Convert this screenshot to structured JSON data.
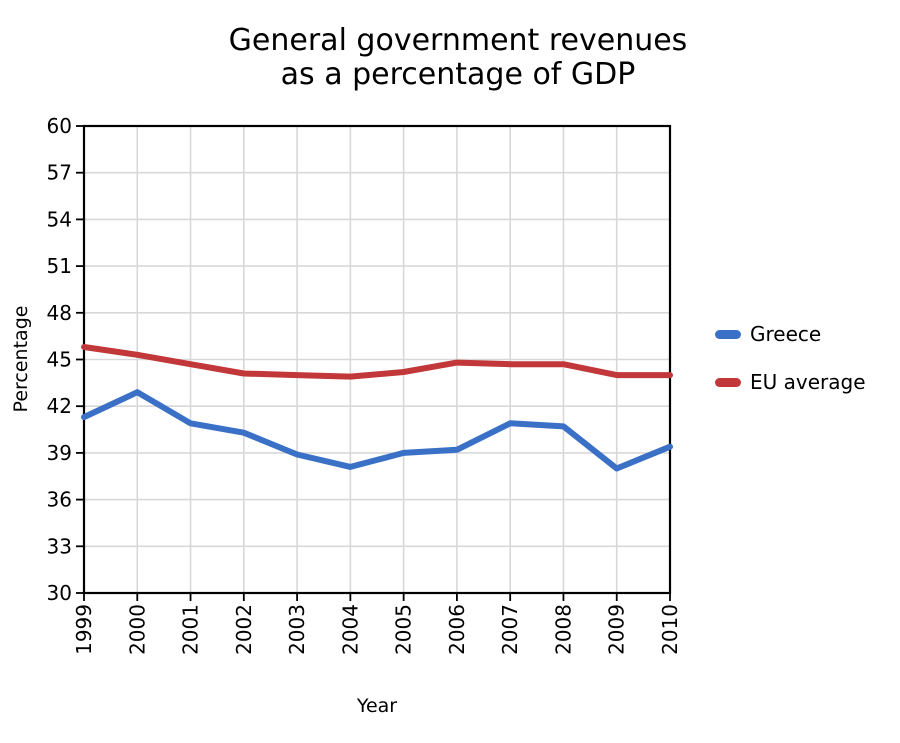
{
  "title": {
    "line1": "General government revenues",
    "line2": "as a percentage of GDP"
  },
  "axes": {
    "x_label": "Year",
    "y_label": "Percentage"
  },
  "chart_data": {
    "type": "line",
    "title": "General government revenues as a percentage of GDP",
    "xlabel": "Year",
    "ylabel": "Percentage",
    "categories": [
      "1999",
      "2000",
      "2001",
      "2002",
      "2003",
      "2004",
      "2005",
      "2006",
      "2007",
      "2008",
      "2009",
      "2010"
    ],
    "ylim": [
      30,
      60
    ],
    "yticks": [
      30,
      33,
      36,
      39,
      42,
      45,
      48,
      51,
      54,
      57,
      60
    ],
    "grid": true,
    "legend_position": "right-of-plot",
    "series": [
      {
        "name": "Greece",
        "color": "#3A70C6",
        "values": [
          41.3,
          42.9,
          40.9,
          40.3,
          38.9,
          38.1,
          39.0,
          39.2,
          40.9,
          40.7,
          38.0,
          39.4
        ]
      },
      {
        "name": "EU average",
        "color": "#C23739",
        "values": [
          45.8,
          45.3,
          44.7,
          44.1,
          44.0,
          43.9,
          44.2,
          44.8,
          44.7,
          44.7,
          44.0,
          44.0
        ]
      }
    ]
  },
  "style": {
    "background": "#FFFFFF",
    "grid_color": "#D8D8D8",
    "axis_color": "#000000",
    "text_color": "#000000"
  }
}
